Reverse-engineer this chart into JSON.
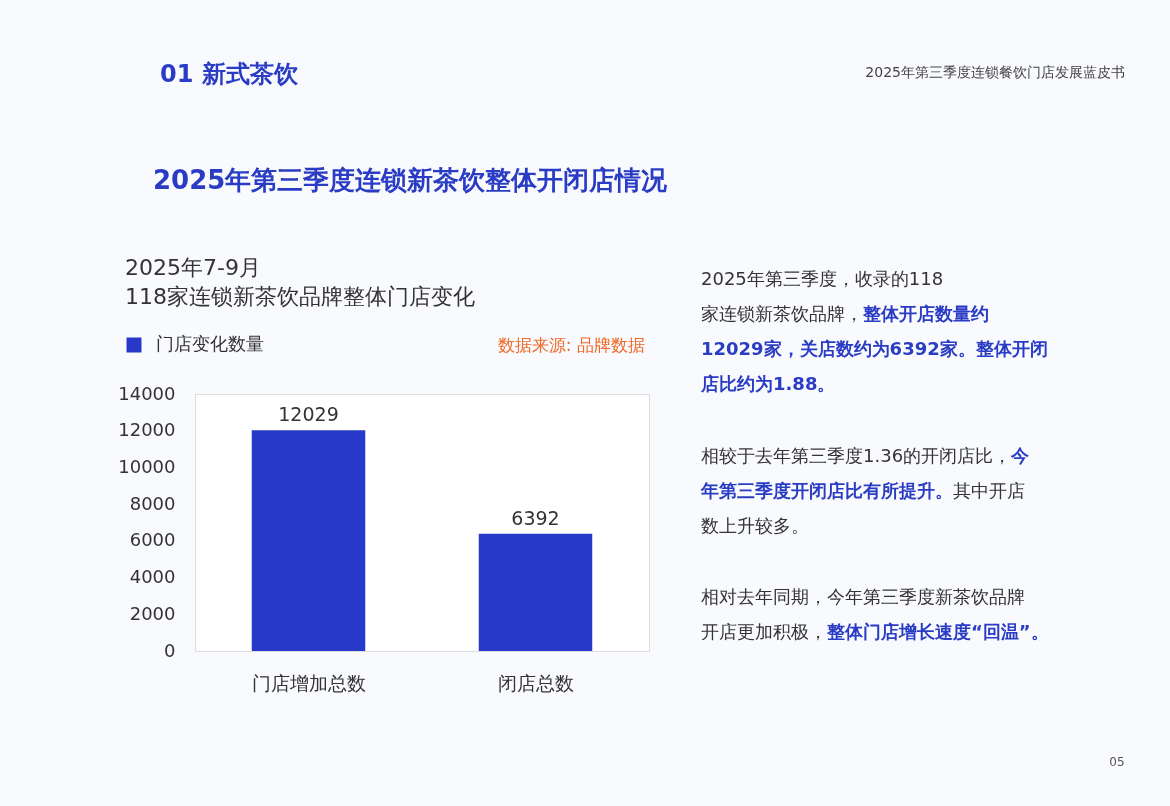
{
  "chart_data": {
    "type": "bar",
    "title": "2025年7-9月",
    "subtitle": "118家连锁新茶饮品牌整体门店变化",
    "categories": [
      "门店增加总数",
      "闭店总数"
    ],
    "series": [
      {
        "name": "门店变化数量",
        "color": "#2639c9",
        "values": [
          12029,
          6392
        ]
      }
    ],
    "ylim": [
      0,
      14000
    ],
    "yticks": [
      0,
      2000,
      4000,
      6000,
      8000,
      10000,
      12000,
      14000
    ],
    "data_labels": true,
    "legend": "top left",
    "grid": false,
    "annotations": [
      "01 新式茶饮",
      "2025年第三季度连锁餐饮门店发展蓝皮书",
      "2025年第三季度连锁新茶饮整体开闭店情况",
      "数据来源: 品牌数据",
      "2025年第三季度，收录的118",
      "家连锁新茶饮品牌，",
      "整体开店数量约",
      "12029家，关店数约为6392家。整体开闭",
      "店比约为1.88。",
      "相较于去年第三季度1.36的开闭店比，",
      "今",
      "年第三季度开闭店比有所提升。",
      "其中开店",
      "数上升较多。",
      "相对去年同期，今年第三季度新茶饮品牌",
      "开店更加积极，",
      "整体门店增长速度“回温”。",
      "05"
    ]
  }
}
